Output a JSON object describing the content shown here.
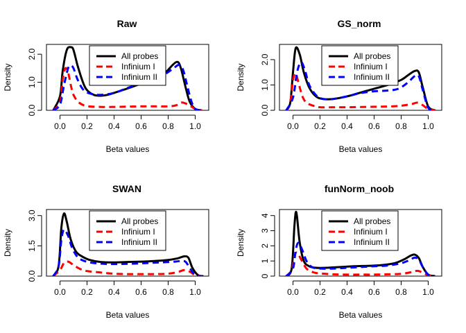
{
  "chart_data": [
    {
      "type": "line",
      "title": "Raw",
      "xlabel": "Beta values",
      "ylabel": "Density",
      "xlim": [
        -0.1,
        1.1
      ],
      "ylim": [
        0,
        2.35
      ],
      "xticks": [
        "0.0",
        "0.2",
        "0.4",
        "0.6",
        "0.8",
        "1.0"
      ],
      "yticks": [
        "0.0",
        "1.0",
        "2.0"
      ],
      "legend_position": "top-center",
      "series": [
        {
          "name": "All probes",
          "color": "#000000",
          "dash": "solid",
          "x": [
            -0.05,
            0.0,
            0.02,
            0.05,
            0.08,
            0.1,
            0.13,
            0.17,
            0.2,
            0.25,
            0.3,
            0.35,
            0.4,
            0.5,
            0.6,
            0.7,
            0.78,
            0.83,
            0.86,
            0.88,
            0.9,
            0.93,
            0.96,
            1.0,
            1.05
          ],
          "y": [
            0.0,
            0.5,
            1.4,
            2.15,
            2.25,
            2.15,
            1.6,
            1.0,
            0.72,
            0.55,
            0.52,
            0.55,
            0.62,
            0.78,
            0.95,
            1.1,
            1.35,
            1.6,
            1.72,
            1.68,
            1.4,
            0.8,
            0.3,
            0.05,
            0.0
          ]
        },
        {
          "name": "Infinium I",
          "color": "#ff0000",
          "dash": "dashed",
          "x": [
            -0.05,
            0.0,
            0.02,
            0.04,
            0.06,
            0.08,
            0.1,
            0.14,
            0.2,
            0.3,
            0.4,
            0.5,
            0.6,
            0.7,
            0.8,
            0.86,
            0.9,
            0.95,
            1.0,
            1.05
          ],
          "y": [
            0.0,
            0.3,
            1.1,
            1.5,
            1.35,
            0.9,
            0.55,
            0.28,
            0.15,
            0.12,
            0.12,
            0.13,
            0.14,
            0.14,
            0.14,
            0.18,
            0.28,
            0.2,
            0.05,
            0.0
          ]
        },
        {
          "name": "Infinium II",
          "color": "#0000ff",
          "dash": "dashed",
          "x": [
            -0.05,
            0.0,
            0.03,
            0.06,
            0.08,
            0.1,
            0.13,
            0.17,
            0.22,
            0.3,
            0.4,
            0.5,
            0.6,
            0.7,
            0.78,
            0.84,
            0.88,
            0.91,
            0.94,
            0.97,
            1.0,
            1.05
          ],
          "y": [
            0.0,
            0.2,
            0.9,
            1.5,
            1.6,
            1.5,
            1.1,
            0.75,
            0.6,
            0.55,
            0.62,
            0.8,
            0.95,
            1.1,
            1.3,
            1.5,
            1.62,
            1.45,
            0.9,
            0.35,
            0.05,
            0.0
          ]
        }
      ]
    },
    {
      "type": "line",
      "title": "GS_norm",
      "xlabel": "Beta values",
      "ylabel": "Density",
      "xlim": [
        -0.1,
        1.1
      ],
      "ylim": [
        0,
        2.6
      ],
      "xticks": [
        "0.0",
        "0.2",
        "0.4",
        "0.6",
        "0.8",
        "1.0"
      ],
      "yticks": [
        "0.0",
        "1.0",
        "2.0"
      ],
      "legend_position": "top-center",
      "series": [
        {
          "name": "All probes",
          "color": "#000000",
          "dash": "solid",
          "x": [
            -0.05,
            -0.02,
            0.0,
            0.02,
            0.05,
            0.08,
            0.12,
            0.17,
            0.22,
            0.3,
            0.4,
            0.5,
            0.6,
            0.7,
            0.8,
            0.86,
            0.9,
            0.93,
            0.96,
            1.0,
            1.05
          ],
          "y": [
            0.0,
            0.3,
            1.5,
            2.45,
            2.2,
            1.5,
            0.9,
            0.55,
            0.45,
            0.45,
            0.55,
            0.7,
            0.85,
            1.0,
            1.2,
            1.42,
            1.55,
            1.5,
            0.9,
            0.15,
            0.0
          ]
        },
        {
          "name": "Infinium I",
          "color": "#ff0000",
          "dash": "dashed",
          "x": [
            -0.05,
            -0.02,
            0.0,
            0.02,
            0.04,
            0.07,
            0.1,
            0.15,
            0.2,
            0.3,
            0.4,
            0.5,
            0.6,
            0.7,
            0.8,
            0.88,
            0.92,
            0.96,
            1.0,
            1.05
          ],
          "y": [
            0.0,
            0.3,
            1.2,
            1.45,
            1.1,
            0.55,
            0.3,
            0.18,
            0.12,
            0.12,
            0.12,
            0.13,
            0.14,
            0.15,
            0.18,
            0.25,
            0.3,
            0.2,
            0.05,
            0.0
          ]
        },
        {
          "name": "Infinium II",
          "color": "#0000ff",
          "dash": "dashed",
          "x": [
            -0.05,
            0.0,
            0.03,
            0.06,
            0.09,
            0.12,
            0.17,
            0.22,
            0.3,
            0.4,
            0.5,
            0.6,
            0.7,
            0.78,
            0.85,
            0.9,
            0.93,
            0.96,
            1.0,
            1.05
          ],
          "y": [
            0.0,
            0.5,
            1.5,
            1.9,
            1.55,
            1.0,
            0.6,
            0.45,
            0.45,
            0.55,
            0.68,
            0.75,
            0.78,
            0.85,
            1.1,
            1.35,
            1.35,
            0.8,
            0.1,
            0.0
          ]
        }
      ]
    },
    {
      "type": "line",
      "title": "SWAN",
      "xlabel": "Beta values",
      "ylabel": "Density",
      "xlim": [
        -0.1,
        1.1
      ],
      "ylim": [
        0,
        3.3
      ],
      "xticks": [
        "0.0",
        "0.2",
        "0.4",
        "0.6",
        "0.8",
        "1.0"
      ],
      "yticks": [
        "0.0",
        "1.5",
        "3.0"
      ],
      "legend_position": "top-center",
      "series": [
        {
          "name": "All probes",
          "color": "#000000",
          "dash": "solid",
          "x": [
            -0.05,
            -0.01,
            0.01,
            0.03,
            0.05,
            0.08,
            0.12,
            0.17,
            0.22,
            0.3,
            0.4,
            0.5,
            0.6,
            0.7,
            0.8,
            0.87,
            0.92,
            0.95,
            0.98,
            1.02,
            1.06
          ],
          "y": [
            0.0,
            0.5,
            2.4,
            3.1,
            2.7,
            1.8,
            1.2,
            0.95,
            0.8,
            0.7,
            0.68,
            0.7,
            0.72,
            0.75,
            0.8,
            0.88,
            0.98,
            0.9,
            0.4,
            0.05,
            0.0
          ]
        },
        {
          "name": "Infinium I",
          "color": "#ff0000",
          "dash": "dashed",
          "x": [
            -0.05,
            0.0,
            0.03,
            0.06,
            0.1,
            0.15,
            0.2,
            0.3,
            0.4,
            0.5,
            0.6,
            0.7,
            0.8,
            0.87,
            0.92,
            0.96,
            1.0,
            1.05
          ],
          "y": [
            0.0,
            0.3,
            0.65,
            0.72,
            0.55,
            0.35,
            0.25,
            0.18,
            0.12,
            0.1,
            0.1,
            0.1,
            0.12,
            0.2,
            0.3,
            0.22,
            0.05,
            0.0
          ]
        },
        {
          "name": "Infinium II",
          "color": "#0000ff",
          "dash": "dashed",
          "x": [
            -0.05,
            -0.01,
            0.01,
            0.03,
            0.06,
            0.09,
            0.13,
            0.18,
            0.25,
            0.35,
            0.45,
            0.55,
            0.65,
            0.75,
            0.85,
            0.9,
            0.93,
            0.96,
            1.0,
            1.05
          ],
          "y": [
            0.0,
            0.5,
            1.8,
            2.3,
            2.0,
            1.4,
            0.95,
            0.75,
            0.65,
            0.6,
            0.6,
            0.62,
            0.65,
            0.68,
            0.72,
            0.75,
            0.7,
            0.4,
            0.05,
            0.0
          ]
        }
      ]
    },
    {
      "type": "line",
      "title": "funNorm_noob",
      "xlabel": "Beta values",
      "ylabel": "Density",
      "xlim": [
        -0.1,
        1.1
      ],
      "ylim": [
        0,
        4.4
      ],
      "xticks": [
        "0.0",
        "0.2",
        "0.4",
        "0.6",
        "0.8",
        "1.0"
      ],
      "yticks": [
        "0",
        "1",
        "2",
        "3",
        "4"
      ],
      "legend_position": "top-center",
      "series": [
        {
          "name": "All probes",
          "color": "#000000",
          "dash": "solid",
          "x": [
            -0.05,
            -0.01,
            0.01,
            0.02,
            0.03,
            0.05,
            0.08,
            0.12,
            0.17,
            0.25,
            0.35,
            0.45,
            0.55,
            0.65,
            0.75,
            0.82,
            0.87,
            0.9,
            0.93,
            0.96,
            1.0,
            1.05
          ],
          "y": [
            0.0,
            0.5,
            3.2,
            4.2,
            3.9,
            2.2,
            1.0,
            0.65,
            0.55,
            0.55,
            0.6,
            0.65,
            0.68,
            0.72,
            0.85,
            1.1,
            1.35,
            1.42,
            1.2,
            0.6,
            0.1,
            0.0
          ]
        },
        {
          "name": "Infinium I",
          "color": "#ff0000",
          "dash": "dashed",
          "x": [
            -0.05,
            -0.01,
            0.01,
            0.03,
            0.06,
            0.1,
            0.15,
            0.2,
            0.3,
            0.4,
            0.5,
            0.6,
            0.7,
            0.8,
            0.87,
            0.92,
            0.96,
            1.0,
            1.05
          ],
          "y": [
            0.0,
            0.4,
            1.3,
            1.55,
            1.1,
            0.5,
            0.25,
            0.18,
            0.12,
            0.1,
            0.1,
            0.1,
            0.12,
            0.15,
            0.25,
            0.35,
            0.22,
            0.05,
            0.0
          ]
        },
        {
          "name": "Infinium II",
          "color": "#0000ff",
          "dash": "dashed",
          "x": [
            -0.05,
            0.0,
            0.02,
            0.04,
            0.07,
            0.1,
            0.14,
            0.2,
            0.3,
            0.4,
            0.5,
            0.6,
            0.7,
            0.8,
            0.86,
            0.9,
            0.93,
            0.96,
            1.0,
            1.05
          ],
          "y": [
            0.0,
            0.5,
            1.7,
            2.2,
            1.7,
            1.0,
            0.6,
            0.5,
            0.5,
            0.55,
            0.6,
            0.65,
            0.7,
            0.85,
            1.05,
            1.22,
            1.1,
            0.6,
            0.1,
            0.0
          ]
        }
      ]
    }
  ]
}
